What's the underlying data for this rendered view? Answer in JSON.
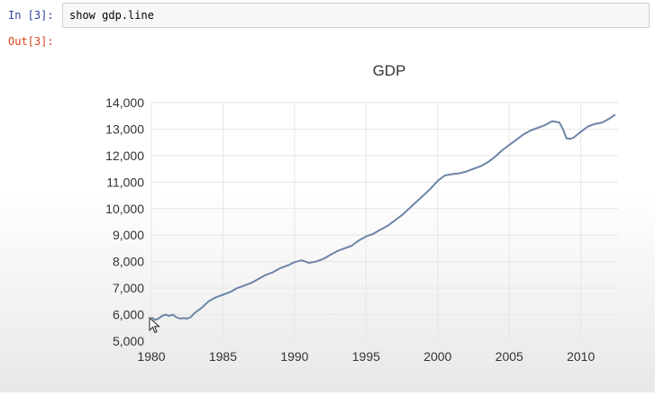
{
  "cell": {
    "in_prompt": "In [3]:",
    "code": "show gdp.line",
    "out_prompt": "Out[3]:"
  },
  "icons": {
    "cursor": "mouse-pointer-icon"
  },
  "colors": {
    "line": "#6d84a8",
    "in_prompt": "#303f9f",
    "out_prompt": "#d84315"
  },
  "chart_data": {
    "type": "line",
    "title": "GDP",
    "xlabel": "",
    "ylabel": "",
    "xlim": [
      1980,
      2012.6
    ],
    "ylim": [
      5000,
      14000
    ],
    "x_ticks": [
      1980,
      1985,
      1990,
      1995,
      2000,
      2005,
      2010
    ],
    "x_tick_labels": [
      "1980",
      "1985",
      "1990",
      "1995",
      "2000",
      "2005",
      "2010"
    ],
    "y_ticks": [
      5000,
      6000,
      7000,
      8000,
      9000,
      10000,
      11000,
      12000,
      13000,
      14000
    ],
    "y_tick_labels": [
      "5,000",
      "6,000",
      "7,000",
      "8,000",
      "9,000",
      "10,000",
      "11,000",
      "12,000",
      "13,000",
      "14,000"
    ],
    "grid": {
      "x": true,
      "y": true
    },
    "series": [
      {
        "x": [
          1980.0,
          1980.25,
          1980.5,
          1980.75,
          1981.0,
          1981.25,
          1981.5,
          1981.75,
          1982.0,
          1982.25,
          1982.5,
          1982.75,
          1983.0,
          1983.5,
          1984.0,
          1984.5,
          1985.0,
          1985.5,
          1986.0,
          1986.5,
          1987.0,
          1987.5,
          1988.0,
          1988.5,
          1989.0,
          1989.5,
          1990.0,
          1990.5,
          1991.0,
          1991.5,
          1992.0,
          1992.5,
          1993.0,
          1993.5,
          1994.0,
          1994.5,
          1995.0,
          1995.5,
          1996.0,
          1996.5,
          1997.0,
          1997.5,
          1998.0,
          1998.5,
          1999.0,
          1999.5,
          2000.0,
          2000.5,
          2001.0,
          2001.5,
          2002.0,
          2002.5,
          2003.0,
          2003.5,
          2004.0,
          2004.5,
          2005.0,
          2005.5,
          2006.0,
          2006.5,
          2007.0,
          2007.5,
          2008.0,
          2008.5,
          2008.75,
          2009.0,
          2009.25,
          2009.5,
          2010.0,
          2010.5,
          2011.0,
          2011.5,
          2012.0,
          2012.4
        ],
        "values": [
          5900,
          5800,
          5850,
          5950,
          6000,
          5950,
          6000,
          5900,
          5850,
          5870,
          5850,
          5900,
          6050,
          6250,
          6500,
          6650,
          6750,
          6850,
          7000,
          7100,
          7200,
          7350,
          7500,
          7600,
          7750,
          7850,
          7980,
          8050,
          7950,
          8000,
          8100,
          8250,
          8400,
          8500,
          8600,
          8800,
          8950,
          9050,
          9200,
          9350,
          9550,
          9750,
          10000,
          10250,
          10500,
          10750,
          11050,
          11250,
          11300,
          11330,
          11400,
          11500,
          11600,
          11750,
          11950,
          12200,
          12400,
          12600,
          12800,
          12950,
          13050,
          13150,
          13300,
          13250,
          13000,
          12650,
          12630,
          12680,
          12900,
          13100,
          13200,
          13250,
          13400,
          13550
        ]
      }
    ]
  }
}
